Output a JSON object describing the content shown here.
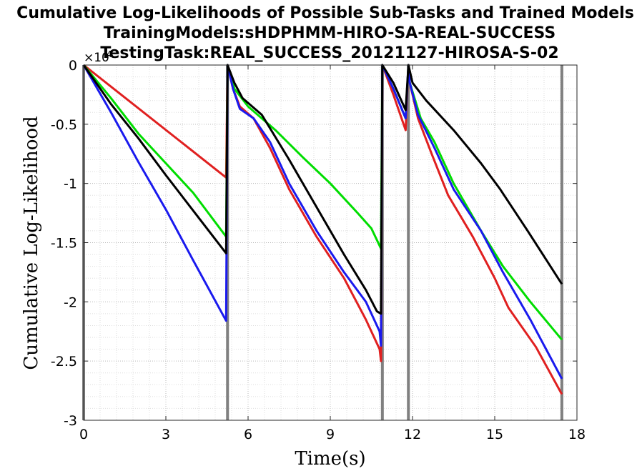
{
  "chart_data": {
    "type": "line",
    "title_lines": [
      "Cumulative Log-Likelihoods of Possible Sub-Tasks and Trained Models",
      "TrainingModels:sHDPHMM-HIRO-SA-REAL-SUCCESS",
      "TestingTask:REAL_SUCCESS_20121127-HIROSA-S-02"
    ],
    "xlabel": "Time(s)",
    "ylabel": "Cumulative Log-Likelihood",
    "y_exponent_label": "×10",
    "y_exponent_power": "4",
    "xlim": [
      0,
      18
    ],
    "ylim": [
      -30000,
      0
    ],
    "x_ticks": [
      0,
      3,
      6,
      9,
      12,
      15,
      18
    ],
    "x_tick_labels": [
      "0",
      "3",
      "6",
      "9",
      "12",
      "15",
      "18"
    ],
    "y_ticks": [
      0,
      -5000,
      -10000,
      -15000,
      -20000,
      -25000,
      -30000
    ],
    "y_tick_labels": [
      "0",
      "-0.5",
      "-1",
      "-1.5",
      "-2",
      "-2.5",
      "-3"
    ],
    "grid": "on",
    "boundaries": [
      0,
      5.25,
      10.9,
      11.85,
      17.45
    ],
    "boundary_color": "#808080",
    "series": [
      {
        "color": "#e02020",
        "segments": [
          [
            [
              0,
              0
            ],
            [
              5.2,
              -9500
            ]
          ],
          [
            [
              5.25,
              0
            ],
            [
              5.45,
              -2000
            ],
            [
              5.7,
              -3500
            ],
            [
              6.2,
              -4500
            ],
            [
              6.8,
              -7000
            ],
            [
              7.5,
              -10500
            ],
            [
              8.5,
              -14500
            ],
            [
              9.5,
              -18000
            ],
            [
              10.3,
              -21500
            ],
            [
              10.8,
              -24000
            ],
            [
              10.85,
              -25000
            ]
          ],
          [
            [
              10.9,
              0
            ],
            [
              11.3,
              -2500
            ],
            [
              11.75,
              -5500
            ]
          ],
          [
            [
              11.85,
              0
            ],
            [
              11.9,
              -1500
            ],
            [
              12.2,
              -4500
            ],
            [
              12.7,
              -7500
            ],
            [
              13.3,
              -11000
            ],
            [
              14.2,
              -14500
            ],
            [
              15.0,
              -18000
            ],
            [
              15.5,
              -20500
            ],
            [
              16.5,
              -23800
            ],
            [
              17.45,
              -27800
            ]
          ]
        ]
      },
      {
        "color": "#00dd00",
        "segments": [
          [
            [
              0,
              0
            ],
            [
              1.0,
              -2800
            ],
            [
              2.0,
              -5800
            ],
            [
              3.0,
              -8300
            ],
            [
              4.0,
              -10800
            ],
            [
              5.2,
              -14500
            ]
          ],
          [
            [
              5.25,
              0
            ],
            [
              5.5,
              -2000
            ],
            [
              6.0,
              -3500
            ],
            [
              7.0,
              -5500
            ],
            [
              8.0,
              -7800
            ],
            [
              9.0,
              -10000
            ],
            [
              10.0,
              -12500
            ],
            [
              10.5,
              -13800
            ],
            [
              10.85,
              -15500
            ]
          ],
          [
            [
              10.9,
              0
            ],
            [
              11.3,
              -2000
            ],
            [
              11.75,
              -4500
            ]
          ],
          [
            [
              11.85,
              0
            ],
            [
              11.9,
              -1500
            ],
            [
              12.3,
              -4500
            ],
            [
              12.8,
              -6500
            ],
            [
              13.5,
              -10000
            ],
            [
              14.5,
              -14000
            ],
            [
              15.3,
              -17000
            ],
            [
              16.3,
              -20000
            ],
            [
              17.45,
              -23200
            ]
          ]
        ]
      },
      {
        "color": "#1a1aee",
        "segments": [
          [
            [
              0,
              0
            ],
            [
              1.0,
              -4000
            ],
            [
              2.0,
              -8200
            ],
            [
              3.0,
              -12200
            ],
            [
              4.0,
              -16500
            ],
            [
              5.2,
              -21600
            ]
          ],
          [
            [
              5.25,
              0
            ],
            [
              5.45,
              -2000
            ],
            [
              5.7,
              -3700
            ],
            [
              6.2,
              -4500
            ],
            [
              6.8,
              -6500
            ],
            [
              7.5,
              -10000
            ],
            [
              8.5,
              -14000
            ],
            [
              9.5,
              -17500
            ],
            [
              10.3,
              -20000
            ],
            [
              10.8,
              -22500
            ],
            [
              10.85,
              -23700
            ]
          ],
          [
            [
              10.9,
              0
            ],
            [
              11.3,
              -2000
            ],
            [
              11.75,
              -4500
            ]
          ],
          [
            [
              11.85,
              0
            ],
            [
              11.9,
              -1500
            ],
            [
              12.2,
              -4200
            ],
            [
              12.8,
              -7000
            ],
            [
              13.5,
              -10500
            ],
            [
              14.5,
              -14000
            ],
            [
              15.3,
              -17500
            ],
            [
              16.3,
              -21500
            ],
            [
              17.45,
              -26500
            ]
          ]
        ]
      },
      {
        "color": "#000000",
        "segments": [
          [
            [
              0,
              0
            ],
            [
              1.0,
              -3300
            ],
            [
              2.0,
              -6200
            ],
            [
              3.0,
              -9300
            ],
            [
              4.0,
              -12300
            ],
            [
              5.2,
              -15900
            ]
          ],
          [
            [
              5.25,
              0
            ],
            [
              5.5,
              -1500
            ],
            [
              5.8,
              -2800
            ],
            [
              6.5,
              -4200
            ],
            [
              7.5,
              -8000
            ],
            [
              8.5,
              -12000
            ],
            [
              9.5,
              -16000
            ],
            [
              10.3,
              -19000
            ],
            [
              10.7,
              -20800
            ],
            [
              10.85,
              -21000
            ]
          ],
          [
            [
              10.9,
              0
            ],
            [
              11.3,
              -1500
            ],
            [
              11.75,
              -3800
            ]
          ],
          [
            [
              11.85,
              0
            ],
            [
              12.0,
              -1500
            ],
            [
              12.5,
              -3000
            ],
            [
              13.5,
              -5500
            ],
            [
              14.5,
              -8300
            ],
            [
              15.2,
              -10500
            ],
            [
              16.2,
              -14000
            ],
            [
              17.45,
              -18500
            ]
          ]
        ]
      }
    ]
  }
}
